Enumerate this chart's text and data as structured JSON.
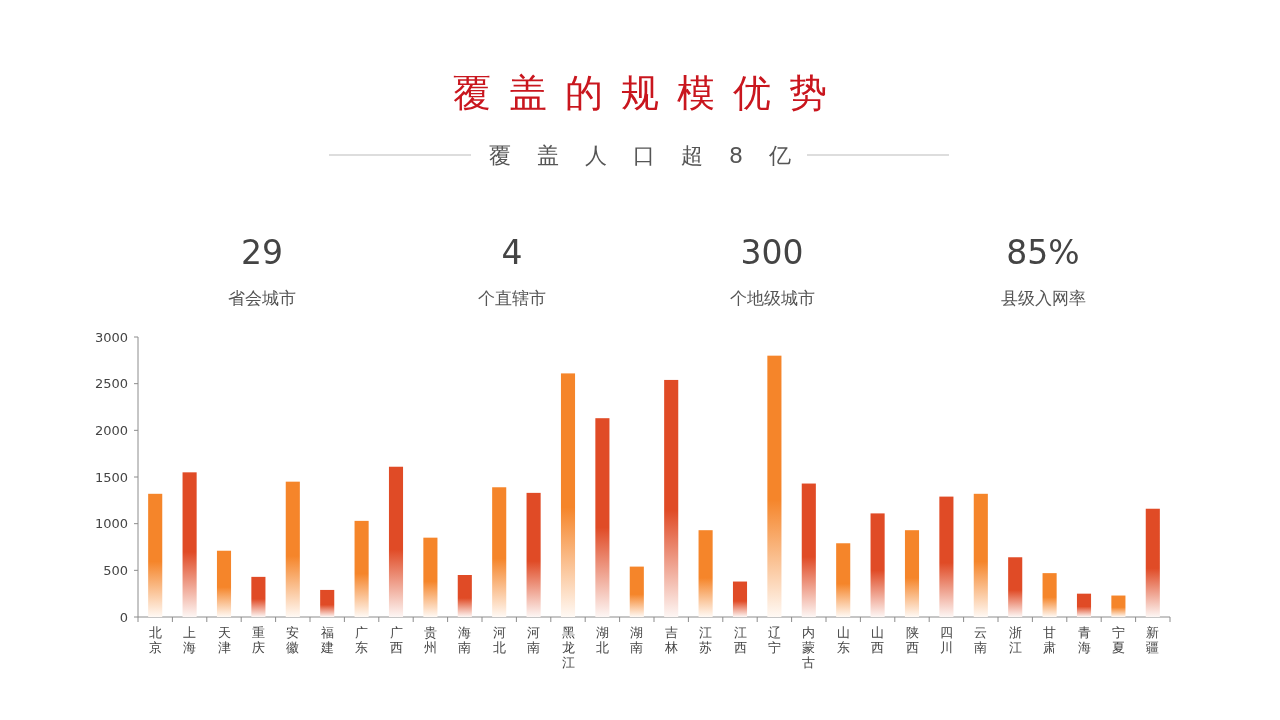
{
  "chart_data": {
    "type": "bar",
    "title": "覆盖的规模优势",
    "subtitle": "覆盖人口超8亿",
    "annotations": [
      "29",
      "省会城市",
      "4",
      "个直辖市",
      "300",
      "个地级城市",
      "85%",
      "县级入网率"
    ],
    "categories": [
      "北京",
      "上海",
      "天津",
      "重庆",
      "安徽",
      "福建",
      "广东",
      "广西",
      "贵州",
      "海南",
      "河北",
      "河南",
      "黑龙江",
      "湖北",
      "湖南",
      "吉林",
      "江苏",
      "江西",
      "辽宁",
      "内蒙古",
      "山东",
      "山西",
      "陕西",
      "四川",
      "云南",
      "浙江",
      "甘肃",
      "青海",
      "宁夏",
      "新疆"
    ],
    "values": [
      1320,
      1550,
      710,
      430,
      1450,
      290,
      1030,
      1610,
      850,
      450,
      1390,
      1330,
      2610,
      2130,
      540,
      2540,
      930,
      380,
      2800,
      1430,
      790,
      1110,
      930,
      1290,
      1320,
      640,
      470,
      250,
      230,
      1160
    ],
    "colors": [
      "#f5852a",
      "#e04b26",
      "#f5852a",
      "#e04b26",
      "#f5852a",
      "#e04b26",
      "#f5852a",
      "#e04b26",
      "#f5852a",
      "#e04b26",
      "#f5852a",
      "#e04b26",
      "#f5852a",
      "#e04b26",
      "#f5852a",
      "#e04b26",
      "#f5852a",
      "#e04b26",
      "#f5852a",
      "#e04b26",
      "#f5852a",
      "#e04b26",
      "#f5852a",
      "#e04b26",
      "#f5852a",
      "#e04b26",
      "#f5852a",
      "#e04b26",
      "#f5852a",
      "#e04b26"
    ],
    "ylim": [
      0,
      3000
    ],
    "yticks": [
      0,
      500,
      1000,
      1500,
      2000,
      2500,
      3000
    ]
  }
}
